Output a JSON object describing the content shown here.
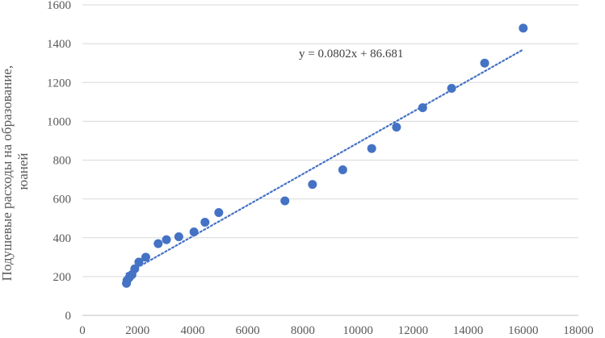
{
  "chart_data": {
    "type": "scatter",
    "title": "",
    "xlabel": "",
    "ylabel": "Подушевые расходы на образование, юаней",
    "ylabel_lines": [
      "Подушевые расходы на образование,",
      "юаней"
    ],
    "xlim": [
      0,
      18000
    ],
    "ylim": [
      0,
      1600
    ],
    "x_ticks": [
      0,
      2000,
      4000,
      6000,
      8000,
      10000,
      12000,
      14000,
      16000,
      18000
    ],
    "y_ticks": [
      0,
      200,
      400,
      600,
      800,
      1000,
      1200,
      1400,
      1600
    ],
    "grid": "horizontal",
    "legend": "none",
    "marker_color": "#4472C4",
    "series": [
      {
        "x": [
          1600,
          1620,
          1700,
          1800,
          1900,
          2050,
          2300,
          2750,
          3050,
          3500,
          4050,
          4450,
          4950,
          7350,
          8350,
          9450,
          10500,
          11400,
          12350,
          13400,
          14600,
          16000
        ],
        "y": [
          165,
          180,
          195,
          210,
          240,
          275,
          300,
          370,
          390,
          405,
          430,
          480,
          530,
          590,
          675,
          750,
          860,
          970,
          1070,
          1170,
          1300,
          1480
        ]
      }
    ],
    "trendline": {
      "type": "linear",
      "slope": 0.0802,
      "intercept": 86.681,
      "x_range": [
        1600,
        16000
      ],
      "color": "#4472C4",
      "equation_label": "y = 0.0802x + 86.681"
    }
  }
}
